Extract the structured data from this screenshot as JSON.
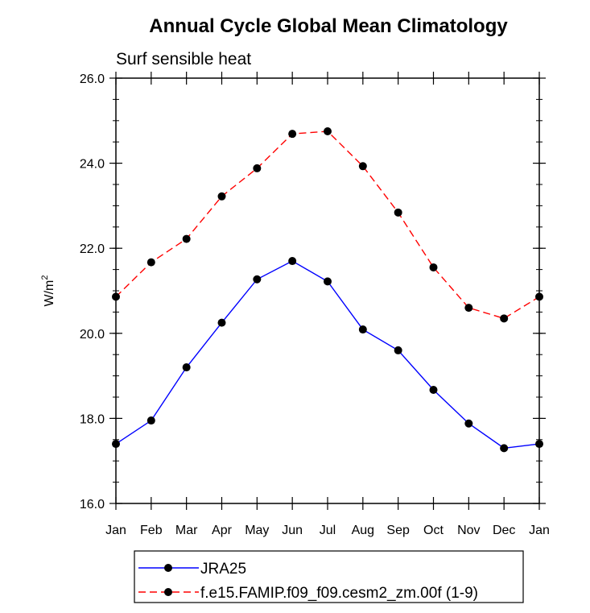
{
  "chart_data": {
    "type": "line",
    "title": "Annual Cycle Global Mean Climatology",
    "subtitle": "Surf sensible heat",
    "ylabel_base": "W/m",
    "ylabel_sup": "2",
    "xlabel": "",
    "categories": [
      "Jan",
      "Feb",
      "Mar",
      "Apr",
      "May",
      "Jun",
      "Jul",
      "Aug",
      "Sep",
      "Oct",
      "Nov",
      "Dec",
      "Jan"
    ],
    "ylim": [
      16.0,
      26.0
    ],
    "yticks": [
      "16.0",
      "18.0",
      "20.0",
      "22.0",
      "24.0",
      "26.0"
    ],
    "grid": false,
    "legend_position": "bottom",
    "series": [
      {
        "name": "JRA25",
        "color": "#0000ff",
        "dash": "solid",
        "values": [
          17.4,
          17.95,
          19.2,
          20.25,
          21.27,
          21.7,
          21.22,
          20.09,
          19.6,
          18.67,
          17.88,
          17.3,
          17.4
        ]
      },
      {
        "name": "f.e15.FAMIP.f09_f09.cesm2_zm.00f (1-9)",
        "color": "#ff0000",
        "dash": "dashed",
        "values": [
          20.86,
          21.67,
          22.22,
          23.22,
          23.88,
          24.69,
          24.75,
          23.93,
          22.84,
          21.55,
          20.6,
          20.35,
          20.86
        ]
      }
    ]
  }
}
